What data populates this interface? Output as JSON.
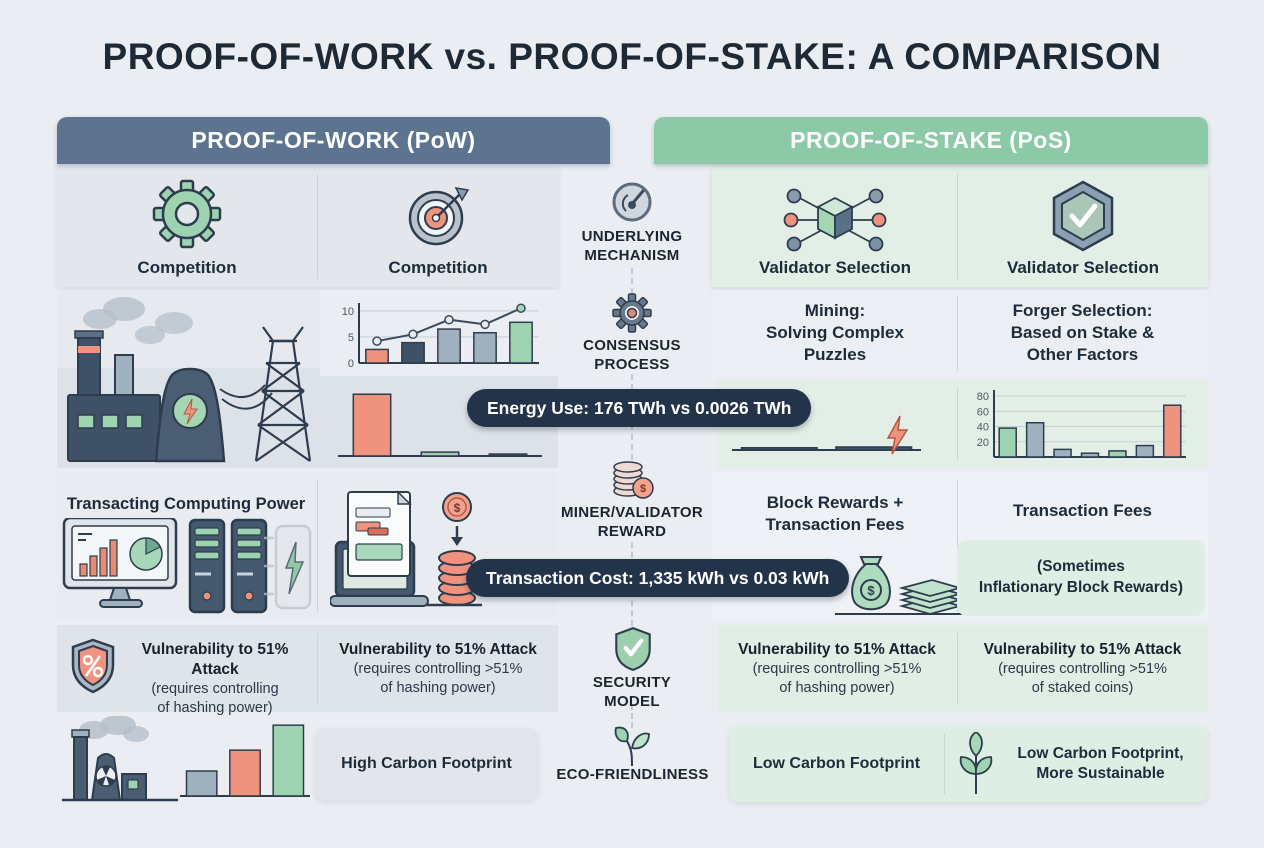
{
  "title": "PROOF-OF-WORK vs. PROOF-OF-STAKE: A COMPARISON",
  "badges": {
    "energy": "Energy Use: 176 TWh vs 0.0026 TWh",
    "cost": "Transaction Cost: 1,335 kWh vs 0.03 kWh"
  },
  "center": {
    "labels": [
      "UNDERLYING\nMECHANISM",
      "CONSENSUS\nPROCESS",
      "MINER/VALIDATOR\nREWARD",
      "SECURITY\nMODEL",
      "ECO-FRIENDLINESS"
    ],
    "icons": [
      "gauge-icon",
      "gear-icon",
      "coins-icon",
      "shield-check-icon",
      "leaf-icon"
    ]
  },
  "pow": {
    "header": "PROOF-OF-WORK (PoW)",
    "mechanism": {
      "left_label": "Competition",
      "right_label": "Competition",
      "left_icon": "gear-icon",
      "right_icon": "target-icon"
    },
    "reward": {
      "left_title": "Transacting Computing Power"
    },
    "security": {
      "left": {
        "title": "Vulnerability to 51% Attack",
        "note": "(requires controlling\nof hashing power)",
        "icon": "shield-percent-icon"
      },
      "right": {
        "title": "Vulnerability to 51% Attack",
        "note": "(requires controlling >51%\nof hashing power)"
      }
    },
    "eco": {
      "box_label": "High Carbon Footprint"
    }
  },
  "pos": {
    "header": "PROOF-OF-STAKE (PoS)",
    "mechanism": {
      "left_label": "Validator Selection",
      "right_label": "Validator Selection",
      "left_icon": "network-cube-icon",
      "right_icon": "hexagon-shield-check-icon"
    },
    "consensus": {
      "left": "Mining:\nSolving Complex\nPuzzles",
      "right": "Forger Selection:\nBased on Stake &\nOther Factors"
    },
    "reward": {
      "left_title": "Block Rewards +\nTransaction Fees",
      "right_title": "Transaction Fees",
      "right_note": "(Sometimes\nInflationary Block Rewards)"
    },
    "security": {
      "left": {
        "title": "Vulnerability to 51% Attack",
        "note": "(requires controlling >51%\nof hashing power)"
      },
      "right": {
        "title": "Vulnerability to 51% Attack",
        "note": "(requires controlling >51%\nof staked coins)"
      }
    },
    "eco": {
      "left_label": "Low Carbon Footprint",
      "right_label": "Low Carbon Footprint,\nMore Sustainable"
    }
  },
  "colors": {
    "background": "#eaeef3",
    "pow_header": "#5d7491",
    "pos_header": "#8cc9a7",
    "pill_bg": "#22334a",
    "coral": "#f0937e",
    "green": "#9ed3b2",
    "green_light": "#bfe3cc",
    "navy": "#3f5166",
    "gray": "#9fb0bf",
    "slate": "#67798c",
    "text_dark": "#1d2b3a"
  },
  "chart_data": [
    {
      "id": "pow-consensus-trend",
      "type": "bar",
      "yticks": [
        0,
        5,
        10
      ],
      "ymax": 11.5,
      "yaxis": true,
      "grid": true,
      "bars": [
        {
          "v": 2.6,
          "c": "coral"
        },
        {
          "v": 3.9,
          "c": "navy"
        },
        {
          "v": 6.5,
          "c": "gray"
        },
        {
          "v": 5.8,
          "c": "gray"
        },
        {
          "v": 7.8,
          "c": "green"
        }
      ],
      "line": [
        4.2,
        5.5,
        8.3,
        7.4,
        10.5
      ]
    },
    {
      "id": "pow-energy-use",
      "type": "bar",
      "ymax": 100,
      "barw": 0.55,
      "bars": [
        {
          "v": 95,
          "c": "coral"
        },
        {
          "v": 6,
          "c": "green"
        },
        {
          "v": 3,
          "c": "navy"
        }
      ]
    },
    {
      "id": "pos-energy-use-flat",
      "type": "bar",
      "ymax": 60,
      "barw": 0.8,
      "bars": [
        {
          "v": 3,
          "c": "navy"
        },
        {
          "v": 4,
          "c": "navy"
        }
      ]
    },
    {
      "id": "pos-stake-distribution",
      "type": "bar",
      "yticks": [
        20,
        40,
        60,
        80
      ],
      "ymax": 88,
      "yaxis": true,
      "grid": true,
      "bars": [
        {
          "v": 38,
          "c": "green"
        },
        {
          "v": 45,
          "c": "gray"
        },
        {
          "v": 10,
          "c": "gray"
        },
        {
          "v": 5,
          "c": "gray"
        },
        {
          "v": 8,
          "c": "green"
        },
        {
          "v": 15,
          "c": "gray"
        },
        {
          "v": 68,
          "c": "coral"
        }
      ]
    },
    {
      "id": "pow-carbon-footprint",
      "type": "bar",
      "ymax": 90,
      "barw": 0.7,
      "bars": [
        {
          "v": 30,
          "c": "gray"
        },
        {
          "v": 55,
          "c": "coral"
        },
        {
          "v": 85,
          "c": "green"
        }
      ]
    }
  ]
}
